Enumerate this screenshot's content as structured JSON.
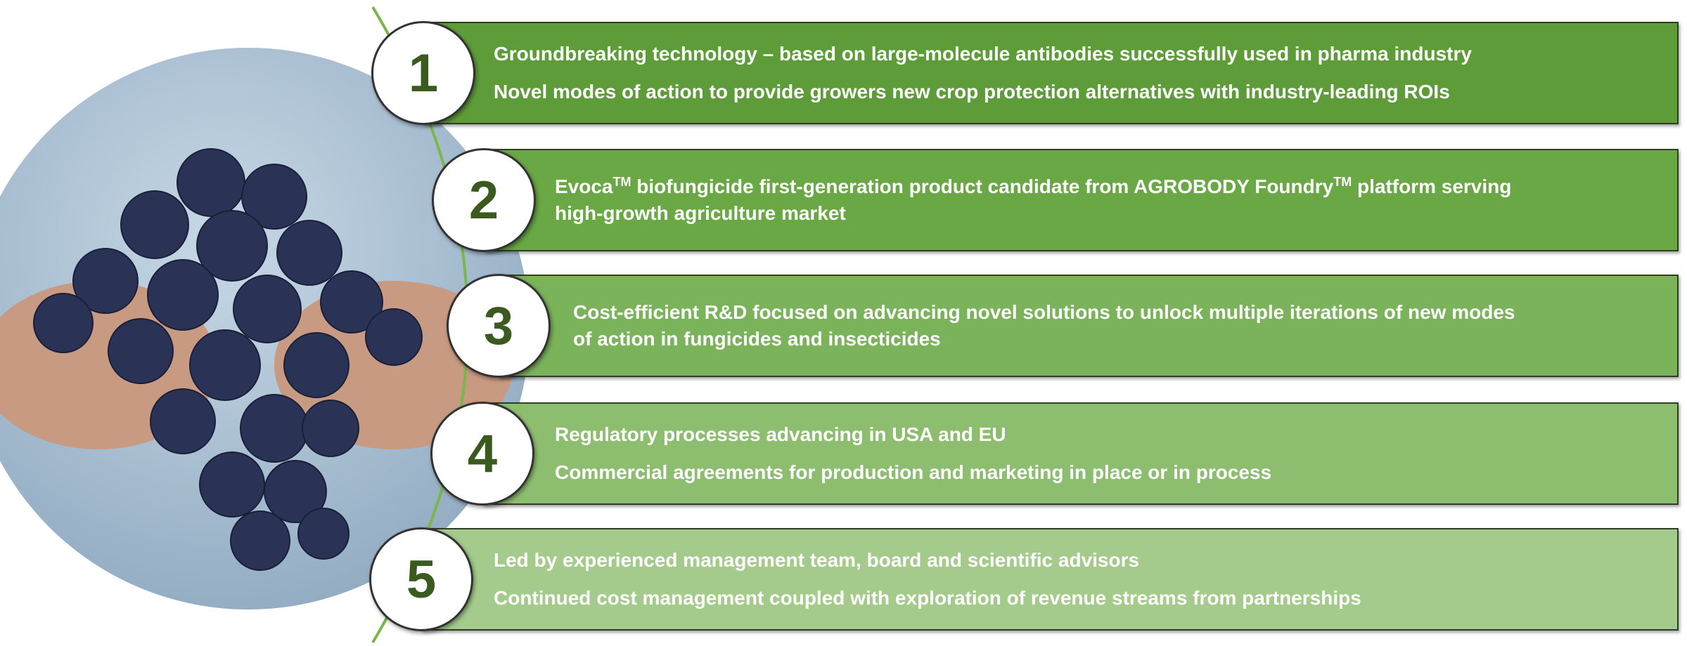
{
  "items": [
    {
      "number": "1",
      "lines": [
        [
          "Groundbreaking technology – based on large-molecule antibodies successfully used in pharma industry"
        ],
        [
          "Novel modes of action to provide growers new crop protection alternatives with industry-leading ROIs"
        ]
      ]
    },
    {
      "number": "2",
      "lines": [
        [
          "Evoca",
          "TM",
          "  biofungicide first-generation product candidate from AGROBODY Foundry",
          "TM",
          " platform serving"
        ],
        [
          "high-growth agriculture market"
        ]
      ]
    },
    {
      "number": "3",
      "lines": [
        [
          "Cost-efficient R&D focused on advancing novel solutions to unlock multiple iterations of new modes"
        ],
        [
          "of action in fungicides and insecticides"
        ]
      ]
    },
    {
      "number": "4",
      "lines": [
        [
          "Regulatory processes advancing in USA and EU"
        ],
        [
          "Commercial agreements for production and marketing in place or in process"
        ]
      ]
    },
    {
      "number": "5",
      "lines": [
        [
          "Led by experienced management team, board and scientific advisors"
        ],
        [
          "Continued cost management coupled with exploration of revenue streams from partnerships"
        ]
      ]
    }
  ]
}
